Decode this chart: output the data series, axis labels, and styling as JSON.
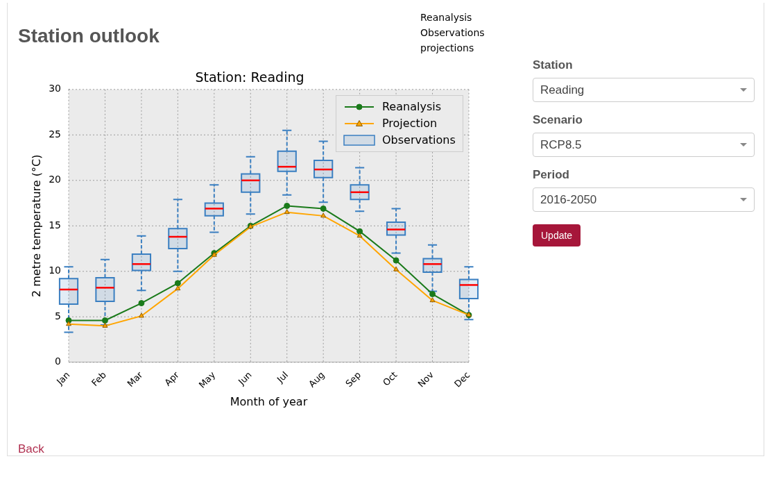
{
  "chart_data": [
    {
      "type": "line",
      "title": "Station outlook",
      "subtitle": "Station: Reading",
      "xlabel": "Month of year",
      "ylabel": "2 metre temperature (°C)",
      "categories": [
        "Jan",
        "Feb",
        "Mar",
        "Apr",
        "May",
        "Jun",
        "Jul",
        "Aug",
        "Sep",
        "Oct",
        "Nov",
        "Dec"
      ],
      "ylim": [
        0,
        30
      ],
      "yticks": [
        0,
        5,
        10,
        15,
        20,
        25,
        30
      ],
      "grid": true,
      "legend": "top right",
      "annotations": [
        "Reanalysis",
        "Observations",
        "projections"
      ],
      "series": [
        {
          "name": "Reanalysis",
          "type": "line",
          "color": "#1a7a1a",
          "marker": "circle",
          "values": [
            4.6,
            4.6,
            6.5,
            8.7,
            12.0,
            15.0,
            17.2,
            16.9,
            14.4,
            11.2,
            7.5,
            5.2
          ]
        },
        {
          "name": "Projection",
          "type": "line",
          "color": "#ffa500",
          "marker": "triangle",
          "values": [
            4.2,
            4.0,
            5.1,
            8.1,
            11.8,
            14.9,
            16.5,
            16.1,
            13.9,
            10.2,
            6.8,
            5.2
          ]
        },
        {
          "name": "Observations",
          "type": "box",
          "color": "#3a7fc1",
          "boxes": [
            {
              "low": 3.3,
              "q1": 6.4,
              "median": 8.0,
              "q3": 9.2,
              "high": 10.5
            },
            {
              "low": 4.1,
              "q1": 6.7,
              "median": 8.2,
              "q3": 9.3,
              "high": 11.3
            },
            {
              "low": 7.9,
              "q1": 10.1,
              "median": 10.8,
              "q3": 11.9,
              "high": 13.9
            },
            {
              "low": 10.0,
              "q1": 12.5,
              "median": 13.8,
              "q3": 14.7,
              "high": 17.9
            },
            {
              "low": 14.3,
              "q1": 16.1,
              "median": 16.9,
              "q3": 17.5,
              "high": 19.5
            },
            {
              "low": 16.3,
              "q1": 18.7,
              "median": 20.0,
              "q3": 20.7,
              "high": 22.6
            },
            {
              "low": 18.4,
              "q1": 21.0,
              "median": 21.5,
              "q3": 23.2,
              "high": 25.5
            },
            {
              "low": 17.6,
              "q1": 20.3,
              "median": 21.2,
              "q3": 22.2,
              "high": 24.3
            },
            {
              "low": 16.6,
              "q1": 17.9,
              "median": 18.7,
              "q3": 19.5,
              "high": 21.4
            },
            {
              "low": 12.0,
              "q1": 14.0,
              "median": 14.6,
              "q3": 15.4,
              "high": 16.9
            },
            {
              "low": 7.8,
              "q1": 9.9,
              "median": 10.8,
              "q3": 11.4,
              "high": 12.9
            },
            {
              "low": 4.7,
              "q1": 7.0,
              "median": 8.5,
              "q3": 9.1,
              "high": 10.5
            }
          ]
        }
      ]
    },
    {
      "type": "other",
      "annotations": [
        "Station",
        "Reading",
        "Scenario",
        "RCP8.5",
        "Period",
        "2016-2050",
        "Update",
        "Back"
      ]
    }
  ]
}
